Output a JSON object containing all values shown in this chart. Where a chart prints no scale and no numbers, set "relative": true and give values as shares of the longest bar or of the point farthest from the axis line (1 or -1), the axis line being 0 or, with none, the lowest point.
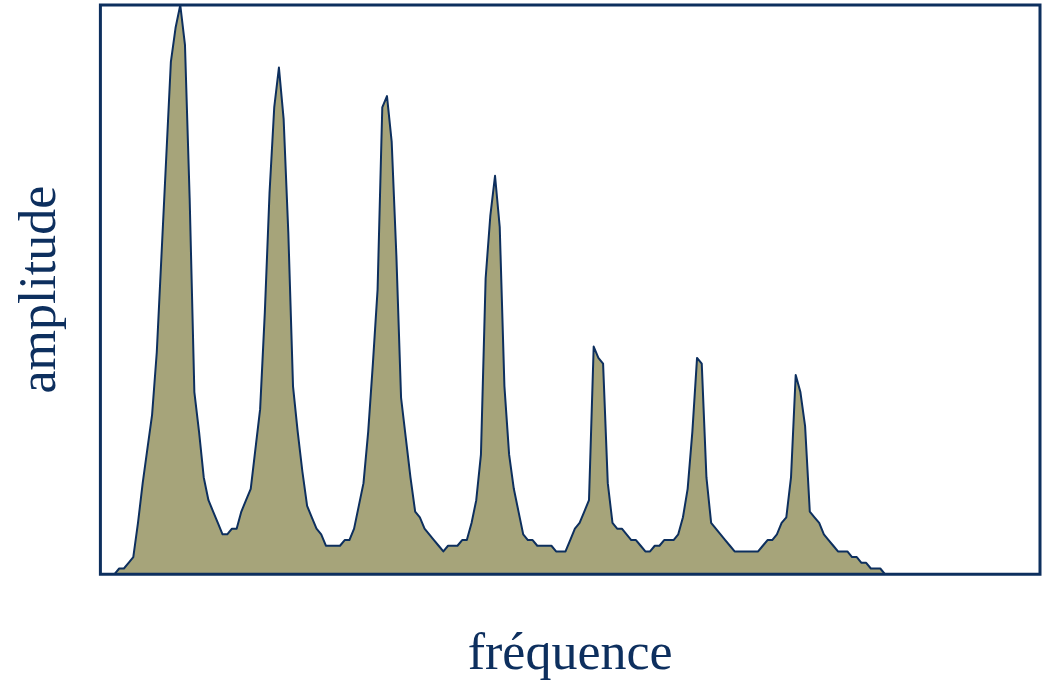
{
  "chart_data": {
    "type": "area",
    "xlabel": "fréquence",
    "ylabel": "amplitude",
    "relative": true,
    "grid": false,
    "legend": false,
    "marker": "none",
    "categories": [
      null,
      null,
      null,
      null,
      null,
      null,
      null,
      null,
      null,
      null,
      null,
      null,
      null,
      null,
      null,
      null,
      null,
      null,
      null,
      null,
      null,
      null,
      null,
      null,
      null,
      null,
      null,
      null,
      null,
      null,
      null,
      null,
      null,
      null,
      null,
      null,
      null,
      null,
      null,
      null,
      null,
      null,
      null,
      null,
      null,
      null,
      null,
      null,
      null,
      null,
      null,
      null,
      null,
      null,
      null,
      null,
      null,
      null,
      null,
      null,
      null,
      null,
      null,
      null,
      null,
      null,
      null,
      null,
      null,
      null,
      null,
      null,
      null,
      null,
      null,
      null,
      null,
      null,
      null,
      null,
      null,
      null,
      null,
      null,
      null,
      null,
      null,
      null,
      null,
      null,
      null,
      null,
      null,
      null,
      null,
      null,
      null,
      null,
      null,
      null,
      null,
      null,
      null,
      null,
      null,
      null,
      null,
      null,
      null,
      null,
      null,
      null,
      null,
      null,
      null,
      null,
      null,
      null,
      null,
      null,
      null,
      null,
      null,
      null,
      null,
      null,
      null,
      null,
      null,
      null,
      null,
      null,
      null,
      null,
      null,
      null,
      null,
      null,
      null,
      null,
      null,
      null,
      null,
      null,
      null,
      null,
      null,
      null,
      null,
      null,
      null,
      null,
      null,
      null,
      null,
      null,
      null,
      null,
      null,
      null,
      null,
      null,
      null,
      null,
      null,
      null,
      null,
      null,
      null,
      null,
      null,
      null,
      null,
      null,
      null,
      null,
      null,
      null,
      null,
      null,
      null,
      null,
      null,
      null,
      null,
      null,
      null,
      null,
      null,
      null,
      null,
      null,
      null,
      null,
      null,
      null,
      null,
      null,
      null,
      null,
      null
    ],
    "series": [
      {
        "color": "#a6a47a",
        "values": [
          null,
          null,
          null,
          0.0,
          0.01,
          0.01,
          0.02,
          0.03,
          0.09,
          0.16,
          0.22,
          0.28,
          0.39,
          0.56,
          0.73,
          0.9,
          0.96,
          1.0,
          0.93,
          0.66,
          0.32,
          0.25,
          0.17,
          0.13,
          0.11,
          0.09,
          0.07,
          0.07,
          0.08,
          0.08,
          0.11,
          0.13,
          0.15,
          0.22,
          0.29,
          0.46,
          0.67,
          0.82,
          0.89,
          0.8,
          0.6,
          0.33,
          0.25,
          0.18,
          0.12,
          0.1,
          0.08,
          0.07,
          0.05,
          0.05,
          0.05,
          0.05,
          0.06,
          0.06,
          0.08,
          0.12,
          0.16,
          0.25,
          0.37,
          0.5,
          0.82,
          0.84,
          0.76,
          0.56,
          0.31,
          0.24,
          0.17,
          0.11,
          0.1,
          0.08,
          0.07,
          0.06,
          0.05,
          0.04,
          0.05,
          0.05,
          0.05,
          0.06,
          0.06,
          0.09,
          0.13,
          0.21,
          0.52,
          0.63,
          0.7,
          0.61,
          0.33,
          0.21,
          0.15,
          0.11,
          0.07,
          0.06,
          0.06,
          0.05,
          0.05,
          0.05,
          0.05,
          0.04,
          0.04,
          0.04,
          0.06,
          0.08,
          0.09,
          0.11,
          0.13,
          0.4,
          0.38,
          0.37,
          0.16,
          0.09,
          0.08,
          0.08,
          0.07,
          0.06,
          0.06,
          0.05,
          0.04,
          0.04,
          0.05,
          0.05,
          0.06,
          0.06,
          0.06,
          0.07,
          0.1,
          0.15,
          0.25,
          0.38,
          0.37,
          0.17,
          0.09,
          0.08,
          0.07,
          0.06,
          0.05,
          0.04,
          0.04,
          0.04,
          0.04,
          0.04,
          0.04,
          0.05,
          0.06,
          0.06,
          0.07,
          0.09,
          0.1,
          0.17,
          0.35,
          0.32,
          0.26,
          0.11,
          0.1,
          0.09,
          0.07,
          0.06,
          0.05,
          0.04,
          0.04,
          0.04,
          0.03,
          0.03,
          0.02,
          0.02,
          0.01,
          0.01,
          0.01,
          0.0,
          null,
          null,
          null,
          null,
          null,
          null,
          null,
          null,
          null,
          null,
          null,
          null,
          null,
          null,
          null,
          null,
          null,
          null,
          null,
          null,
          null,
          null,
          null,
          null,
          null,
          null,
          null,
          null,
          null,
          null,
          null,
          null,
          null
        ]
      }
    ]
  }
}
